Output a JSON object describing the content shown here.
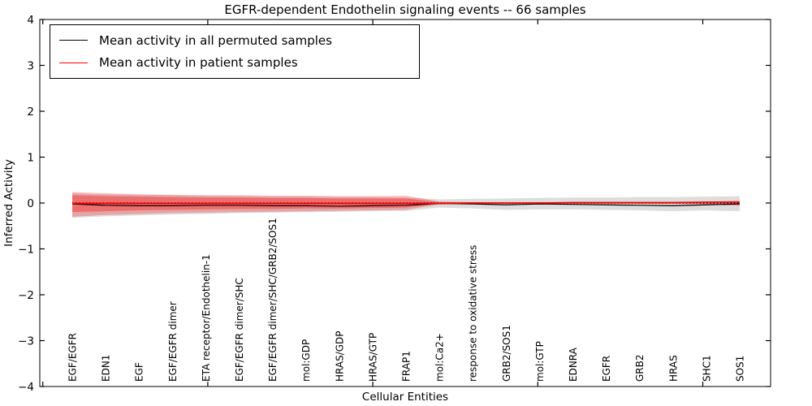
{
  "figure": {
    "title": "EGFR-dependent Endothelin signaling events -- 66 samples",
    "xlabel": "Cellular Entities",
    "ylabel": "Inferred Activity",
    "background_color": "#ffffff",
    "axis_color": "#000000"
  },
  "legend": {
    "entries": [
      {
        "label": "Mean activity in all permuted samples",
        "color": "#000000"
      },
      {
        "label": "Mean activity in patient samples",
        "color": "#ff0000"
      }
    ]
  },
  "chart_data": {
    "type": "line",
    "title": "EGFR-dependent Endothelin signaling events -- 66 samples",
    "xlabel": "Cellular Entities",
    "ylabel": "Inferred Activity",
    "ylim": [
      -4,
      4
    ],
    "yticks": [
      4,
      3,
      2,
      1,
      0,
      -1,
      -2,
      -3,
      -4
    ],
    "grid": false,
    "legend_position": "upper left",
    "categories": [
      "EGF/EGFR",
      "EDN1",
      "EGF",
      "EGF/EGFR dimer",
      "ETA receptor/Endothelin-1",
      "EGF/EGFR dimer/SHC",
      "EGF/EGFR dimer/SHC/GRB2/SOS1",
      "mol:GDP",
      "HRAS/GDP",
      "HRAS/GTP",
      "FRAP1",
      "mol:Ca2+",
      "response to oxidative stress",
      "GRB2/SOS1",
      "mol:GTP",
      "EDNRA",
      "EGFR",
      "GRB2",
      "HRAS",
      "SHC1",
      "SOS1"
    ],
    "series": [
      {
        "name": "zero-reference",
        "color": "#000000",
        "style": "dotted",
        "width": 1.4,
        "values": [
          0,
          0,
          0,
          0,
          0,
          0,
          0,
          0,
          0,
          0,
          0,
          0,
          0,
          0,
          0,
          0,
          0,
          0,
          0,
          0,
          0
        ]
      },
      {
        "name": "Mean activity in all permuted samples",
        "color": "#000000",
        "style": "solid",
        "width": 1.2,
        "values": [
          -0.02,
          -0.05,
          -0.06,
          -0.06,
          -0.05,
          -0.05,
          -0.06,
          -0.06,
          -0.07,
          -0.06,
          -0.05,
          -0.01,
          -0.02,
          -0.04,
          -0.02,
          -0.03,
          -0.04,
          -0.05,
          -0.06,
          -0.04,
          -0.02
        ]
      },
      {
        "name": "Mean activity in patient samples",
        "color": "#ff0000",
        "style": "solid",
        "width": 1.6,
        "values": [
          -0.01,
          -0.01,
          -0.01,
          -0.01,
          -0.01,
          -0.01,
          -0.01,
          -0.01,
          -0.01,
          -0.01,
          -0.01,
          -0.01,
          0,
          0,
          0,
          0.01,
          0.01,
          0.01,
          0.01,
          0.02,
          0.02
        ]
      }
    ],
    "bands": [
      {
        "name": "permuted-std",
        "color": "#808080",
        "opacity": 0.27,
        "upper": [
          0.21,
          0.19,
          0.18,
          0.17,
          0.16,
          0.15,
          0.14,
          0.14,
          0.13,
          0.13,
          0.12,
          0.08,
          0.09,
          0.1,
          0.11,
          0.12,
          0.12,
          0.13,
          0.13,
          0.14,
          0.15
        ],
        "lower": [
          -0.32,
          -0.29,
          -0.27,
          -0.25,
          -0.24,
          -0.22,
          -0.21,
          -0.2,
          -0.19,
          -0.18,
          -0.17,
          -0.1,
          -0.12,
          -0.15,
          -0.14,
          -0.14,
          -0.15,
          -0.16,
          -0.18,
          -0.16,
          -0.18
        ]
      },
      {
        "name": "patient-outer",
        "color": "#ff0000",
        "opacity": 0.25,
        "upper": [
          0.24,
          0.21,
          0.19,
          0.18,
          0.17,
          0.17,
          0.16,
          0.16,
          0.15,
          0.15,
          0.16,
          0.03,
          0.02,
          0.02,
          0.02,
          0.02,
          0.02,
          0.02,
          0.02,
          0.03,
          0.05
        ],
        "lower": [
          -0.3,
          -0.26,
          -0.24,
          -0.22,
          -0.21,
          -0.2,
          -0.19,
          -0.18,
          -0.17,
          -0.16,
          -0.15,
          -0.03,
          -0.02,
          -0.02,
          -0.02,
          -0.02,
          -0.02,
          -0.02,
          -0.02,
          -0.03,
          -0.06
        ]
      },
      {
        "name": "patient-inner",
        "color": "#ff0000",
        "opacity": 0.33,
        "upper": [
          0.17,
          0.15,
          0.14,
          0.13,
          0.12,
          0.12,
          0.11,
          0.11,
          0.1,
          0.1,
          0.1,
          0.02,
          0.01,
          0.01,
          0.01,
          0.01,
          0.01,
          0.01,
          0.01,
          0.02,
          0.03
        ],
        "lower": [
          -0.2,
          -0.18,
          -0.16,
          -0.15,
          -0.14,
          -0.13,
          -0.13,
          -0.12,
          -0.12,
          -0.11,
          -0.1,
          -0.02,
          -0.01,
          -0.01,
          -0.01,
          -0.01,
          -0.01,
          -0.01,
          -0.01,
          -0.02,
          -0.04
        ]
      }
    ]
  }
}
